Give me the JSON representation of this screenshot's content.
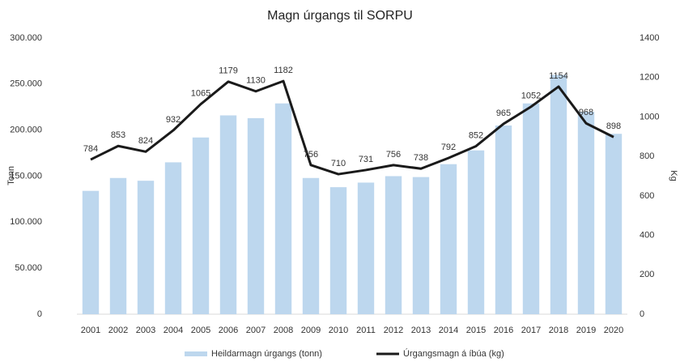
{
  "chart_data": {
    "type": "bar_line",
    "title": "Magn úrgangs til SORPU",
    "y_label": "Tonn",
    "y2_label": "Kg",
    "categories": [
      "2001",
      "2002",
      "2003",
      "2004",
      "2005",
      "2006",
      "2007",
      "2008",
      "2009",
      "2010",
      "2011",
      "2012",
      "2013",
      "2014",
      "2015",
      "2016",
      "2017",
      "2018",
      "2019",
      "2020"
    ],
    "series": [
      {
        "name": "Heildarmagn úrgangs (tonn)",
        "type": "bar",
        "color": "#bdd7ee",
        "values": [
          134000,
          148000,
          145000,
          165000,
          192000,
          216000,
          213000,
          229000,
          148000,
          138000,
          143000,
          150000,
          149000,
          163000,
          178000,
          205000,
          229000,
          260000,
          220000,
          196000
        ]
      },
      {
        "name": "Úrgangsmagn á íbúa (kg)",
        "type": "line",
        "axis": "y2",
        "color": "#1a1a1a",
        "values": [
          784,
          853,
          824,
          932,
          1065,
          1179,
          1130,
          1182,
          756,
          710,
          731,
          756,
          738,
          792,
          852,
          965,
          1052,
          1154,
          968,
          898
        ]
      }
    ],
    "ylim": [
      0,
      300000
    ],
    "yticks": [
      0,
      {
        "value": 50000,
        "label": "50.000"
      },
      {
        "value": 100000,
        "label": "100.000"
      },
      {
        "value": 150000,
        "label": "150.000"
      },
      {
        "value": 200000,
        "label": "200.000"
      },
      {
        "value": 250000,
        "label": "250.000"
      },
      {
        "value": 300000,
        "label": "300.000"
      }
    ],
    "y2lim": [
      0,
      1400
    ],
    "y2ticks": [
      0,
      200,
      400,
      600,
      800,
      1000,
      1200,
      1400
    ],
    "grid": false,
    "legend": "bottom"
  }
}
